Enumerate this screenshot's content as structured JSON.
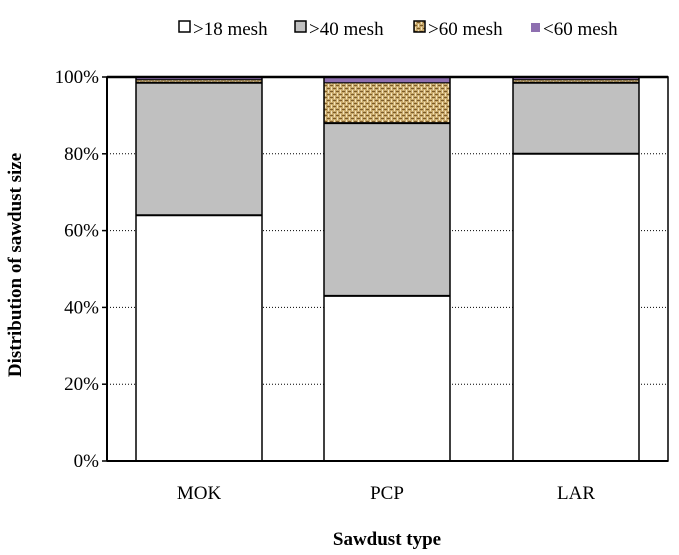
{
  "chart_data": {
    "type": "bar",
    "stacked": true,
    "percent": true,
    "categories": [
      "MOK",
      "PCP",
      "LAR"
    ],
    "series": [
      {
        "name": ">18 mesh",
        "values": [
          64,
          43,
          80
        ],
        "color": "#ffffff",
        "pattern": "none"
      },
      {
        "name": ">40 mesh",
        "values": [
          34.5,
          45,
          18.5
        ],
        "color": "#c0c0c0",
        "pattern": "none"
      },
      {
        "name": ">60 mesh",
        "values": [
          0.8,
          10.5,
          0.8
        ],
        "color": "#c8a96b",
        "pattern": "weave"
      },
      {
        "name": "<60 mesh",
        "values": [
          0.7,
          1.5,
          0.7
        ],
        "color": "#8e6fb0",
        "pattern": "none"
      }
    ],
    "xlabel": "Sawdust type",
    "ylabel": "Distribution of sawdust size",
    "ylim": [
      0,
      100
    ],
    "yticks": [
      "0%",
      "20%",
      "40%",
      "60%",
      "80%",
      "100%"
    ],
    "grid": "horizontal-dotted",
    "legend": "top"
  }
}
